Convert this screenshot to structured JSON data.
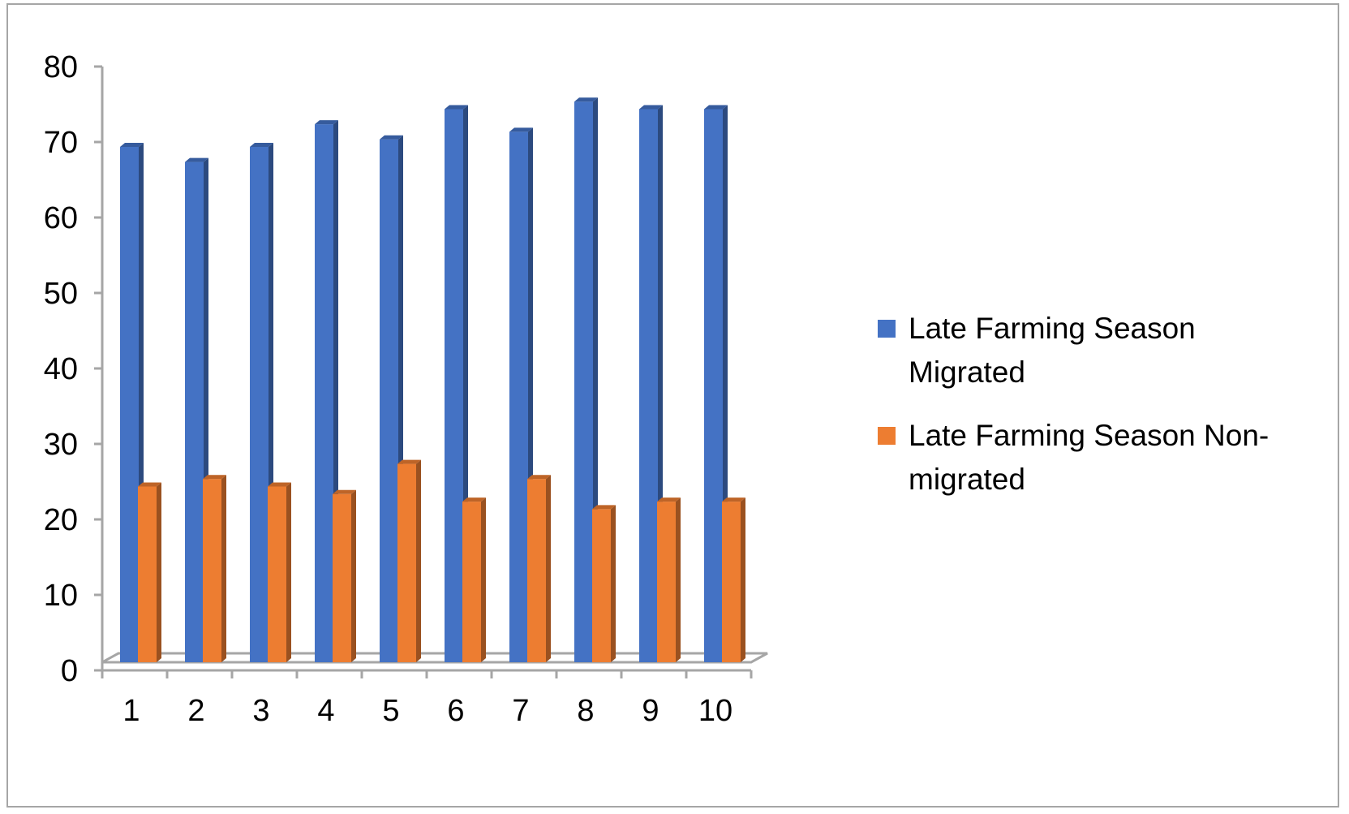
{
  "chart_data": {
    "type": "bar",
    "style": "3d-clustered-column",
    "title": "",
    "xlabel": "",
    "ylabel": "",
    "ylim": [
      0,
      80
    ],
    "yticks": [
      0,
      10,
      20,
      30,
      40,
      50,
      60,
      70,
      80
    ],
    "grid": false,
    "legend_position": "right",
    "categories": [
      "1",
      "2",
      "3",
      "4",
      "5",
      "6",
      "7",
      "8",
      "9",
      "10"
    ],
    "series": [
      {
        "name": "Late Farming Season Migrated",
        "color": "#4472c4",
        "values": [
          70,
          68,
          70,
          73,
          71,
          75,
          72,
          76,
          75,
          75
        ]
      },
      {
        "name": "Late Farming Season Non-migrated",
        "color": "#ed7d31",
        "values": [
          25,
          26,
          25,
          24,
          28,
          23,
          26,
          22,
          23,
          23
        ]
      }
    ]
  }
}
